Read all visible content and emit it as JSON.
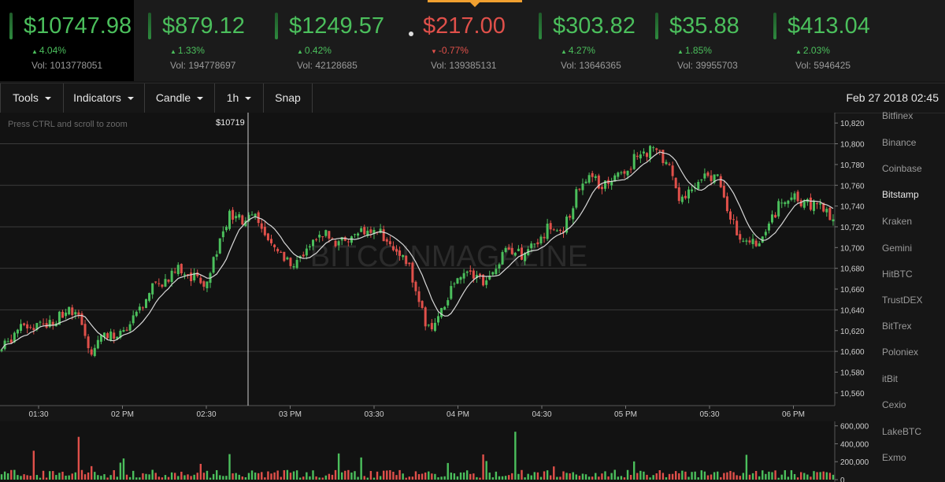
{
  "tickers": [
    {
      "price": "$10747.98",
      "change": "4.04%",
      "direction": "up",
      "volume": "Vol: 1013778051",
      "active": true
    },
    {
      "price": "$879.12",
      "change": "1.33%",
      "direction": "up",
      "volume": "Vol: 194778697"
    },
    {
      "price": "$1249.57",
      "change": "0.42%",
      "direction": "up",
      "volume": "Vol: 42128685"
    },
    {
      "price": "$217.00",
      "change": "-0.77%",
      "direction": "down",
      "volume": "Vol: 139385131"
    },
    {
      "price": "$303.82",
      "change": "4.27%",
      "direction": "up",
      "volume": "Vol: 13646365"
    },
    {
      "price": "$35.88",
      "change": "1.85%",
      "direction": "up",
      "volume": "Vol: 39955703"
    },
    {
      "price": "$413.04",
      "change": "2.03%",
      "direction": "up",
      "volume": "Vol: 5946425"
    }
  ],
  "colors": {
    "up": "#4bbf5c",
    "down": "#e0504a",
    "accent": "#f0a030",
    "grid": "#3a3a3a",
    "ma_line": "#d8d8d8"
  },
  "toolbar": {
    "tools_label": "Tools",
    "indicators_label": "Indicators",
    "candle_label": "Candle",
    "interval_label": "1h",
    "snap_label": "Snap",
    "date": "Feb 27 2018 02:45"
  },
  "chart": {
    "zoom_hint": "Press CTRL and scroll to zoom",
    "crosshair_label": "$10719",
    "watermark": "BITCOINMAGAZINE"
  },
  "exchanges": [
    {
      "name": "Bitfinex"
    },
    {
      "name": "Binance"
    },
    {
      "name": "Coinbase"
    },
    {
      "name": "Bitstamp",
      "selected": true
    },
    {
      "name": "Kraken"
    },
    {
      "name": "Gemini"
    },
    {
      "name": "HitBTC"
    },
    {
      "name": "TrustDEX"
    },
    {
      "name": "BitTrex"
    },
    {
      "name": "Poloniex"
    },
    {
      "name": "itBit"
    },
    {
      "name": "Cexio"
    },
    {
      "name": "LakeBTC"
    },
    {
      "name": "Exmo"
    }
  ],
  "chart_data": {
    "type": "candlestick",
    "price_axis": {
      "ticks": [
        "10,560",
        "10,580",
        "10,600",
        "10,620",
        "10,640",
        "10,660",
        "10,680",
        "10,700",
        "10,720",
        "10,740",
        "10,760",
        "10,780",
        "10,800",
        "10,820"
      ],
      "range": [
        10550,
        10830
      ]
    },
    "volume_axis": {
      "ticks": [
        "600,000",
        "400,000",
        "200,000",
        "0"
      ],
      "range": [
        0,
        650000
      ]
    },
    "time_axis": {
      "labels": [
        "01:30",
        "02 PM",
        "02:30",
        "03 PM",
        "03:30",
        "04 PM",
        "04:30",
        "05 PM",
        "05:30",
        "06 PM"
      ]
    },
    "crosshair_time_fraction": 0.3,
    "close_path": [
      [
        0.0,
        10600
      ],
      [
        0.02,
        10620
      ],
      [
        0.04,
        10625
      ],
      [
        0.06,
        10628
      ],
      [
        0.08,
        10640
      ],
      [
        0.095,
        10630
      ],
      [
        0.11,
        10600
      ],
      [
        0.125,
        10620
      ],
      [
        0.14,
        10610
      ],
      [
        0.155,
        10625
      ],
      [
        0.17,
        10640
      ],
      [
        0.185,
        10665
      ],
      [
        0.2,
        10670
      ],
      [
        0.215,
        10680
      ],
      [
        0.23,
        10672
      ],
      [
        0.245,
        10665
      ],
      [
        0.26,
        10700
      ],
      [
        0.275,
        10730
      ],
      [
        0.29,
        10725
      ],
      [
        0.305,
        10735
      ],
      [
        0.31,
        10720
      ],
      [
        0.325,
        10700
      ],
      [
        0.34,
        10690
      ],
      [
        0.355,
        10685
      ],
      [
        0.37,
        10700
      ],
      [
        0.385,
        10715
      ],
      [
        0.4,
        10705
      ],
      [
        0.42,
        10710
      ],
      [
        0.44,
        10715
      ],
      [
        0.46,
        10712
      ],
      [
        0.475,
        10700
      ],
      [
        0.49,
        10680
      ],
      [
        0.5,
        10660
      ],
      [
        0.51,
        10620
      ],
      [
        0.525,
        10630
      ],
      [
        0.54,
        10660
      ],
      [
        0.555,
        10680
      ],
      [
        0.57,
        10675
      ],
      [
        0.585,
        10665
      ],
      [
        0.6,
        10690
      ],
      [
        0.615,
        10700
      ],
      [
        0.63,
        10690
      ],
      [
        0.645,
        10710
      ],
      [
        0.66,
        10720
      ],
      [
        0.675,
        10715
      ],
      [
        0.69,
        10750
      ],
      [
        0.705,
        10770
      ],
      [
        0.72,
        10760
      ],
      [
        0.735,
        10770
      ],
      [
        0.75,
        10775
      ],
      [
        0.765,
        10790
      ],
      [
        0.78,
        10795
      ],
      [
        0.795,
        10785
      ],
      [
        0.805,
        10770
      ],
      [
        0.815,
        10740
      ],
      [
        0.83,
        10760
      ],
      [
        0.845,
        10770
      ],
      [
        0.86,
        10765
      ],
      [
        0.87,
        10740
      ],
      [
        0.88,
        10720
      ],
      [
        0.89,
        10710
      ],
      [
        0.905,
        10705
      ],
      [
        0.92,
        10720
      ],
      [
        0.935,
        10745
      ],
      [
        0.95,
        10755
      ],
      [
        0.965,
        10740
      ],
      [
        0.98,
        10745
      ],
      [
        1.0,
        10725
      ]
    ]
  }
}
